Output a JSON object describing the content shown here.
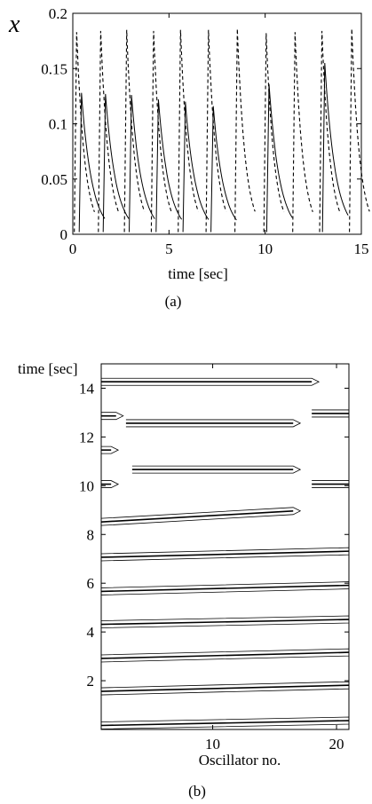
{
  "chart_data": [
    {
      "type": "line",
      "caption": "(a)",
      "title": "",
      "xlabel": "time [sec]",
      "ylabel": "x",
      "xlim": [
        0,
        15
      ],
      "ylim": [
        0,
        0.2
      ],
      "xticks": [
        0,
        5,
        10,
        15
      ],
      "yticks": [
        0,
        0.05,
        0.1,
        0.15,
        0.2
      ],
      "ytick_labels": [
        "0",
        "0.05",
        "0.1",
        "0.15",
        "0.2"
      ],
      "grid": false,
      "series": [
        {
          "style": "solid",
          "peaks": [
            {
              "t": 0.45,
              "x": 0.128
            },
            {
              "t": 1.7,
              "x": 0.127
            },
            {
              "t": 3.05,
              "x": 0.126
            },
            {
              "t": 4.45,
              "x": 0.122
            },
            {
              "t": 5.85,
              "x": 0.12
            },
            {
              "t": 7.3,
              "x": 0.116
            },
            {
              "t": 10.2,
              "x": 0.136
            },
            {
              "t": 13.1,
              "x": 0.155
            }
          ]
        },
        {
          "style": "dashed",
          "peaks": [
            {
              "t": 0.2,
              "x": 0.183
            },
            {
              "t": 1.45,
              "x": 0.184
            },
            {
              "t": 2.8,
              "x": 0.185
            },
            {
              "t": 4.2,
              "x": 0.184
            },
            {
              "t": 5.6,
              "x": 0.185
            },
            {
              "t": 7.05,
              "x": 0.185
            },
            {
              "t": 8.55,
              "x": 0.186
            },
            {
              "t": 10.05,
              "x": 0.182
            },
            {
              "t": 11.55,
              "x": 0.183
            },
            {
              "t": 12.95,
              "x": 0.184
            },
            {
              "t": 14.5,
              "x": 0.186
            }
          ]
        }
      ]
    },
    {
      "type": "contour",
      "caption": "(b)",
      "title": "",
      "xlabel": "Oscillator no.",
      "ylabel": "time [sec]",
      "xlim": [
        1,
        21
      ],
      "ylim": [
        0,
        15
      ],
      "xticks": [
        10,
        20
      ],
      "yticks": [
        2,
        4,
        6,
        8,
        10,
        12,
        14
      ],
      "grid": false,
      "bands": [
        {
          "x0": 1,
          "x1": 21,
          "t0": 0.2,
          "t1": 0.4
        },
        {
          "x0": 1,
          "x1": 21,
          "t0": 1.6,
          "t1": 1.85
        },
        {
          "x0": 1,
          "x1": 21,
          "t0": 2.95,
          "t1": 3.2
        },
        {
          "x0": 1,
          "x1": 21,
          "t0": 4.35,
          "t1": 4.55
        },
        {
          "x0": 1,
          "x1": 21,
          "t0": 5.7,
          "t1": 5.95
        },
        {
          "x0": 1,
          "x1": 21,
          "t0": 7.1,
          "t1": 7.35
        },
        {
          "x0": 1,
          "x1": 16.5,
          "t0": 8.55,
          "t1": 9.0
        },
        {
          "x0": 1,
          "x1": 1.8,
          "t0": 10.1,
          "t1": 10.1
        },
        {
          "x0": 3.5,
          "x1": 16.5,
          "t0": 10.7,
          "t1": 10.7
        },
        {
          "x0": 18,
          "x1": 21,
          "t0": 10.1,
          "t1": 10.1
        },
        {
          "x0": 1,
          "x1": 1.8,
          "t0": 11.5,
          "t1": 11.5
        },
        {
          "x0": 1,
          "x1": 2.2,
          "t0": 12.9,
          "t1": 12.9
        },
        {
          "x0": 3.0,
          "x1": 16.5,
          "t0": 12.6,
          "t1": 12.6
        },
        {
          "x0": 18,
          "x1": 21,
          "t0": 13.0,
          "t1": 13.0
        },
        {
          "x0": 1,
          "x1": 18,
          "t0": 14.3,
          "t1": 14.3
        }
      ]
    }
  ]
}
